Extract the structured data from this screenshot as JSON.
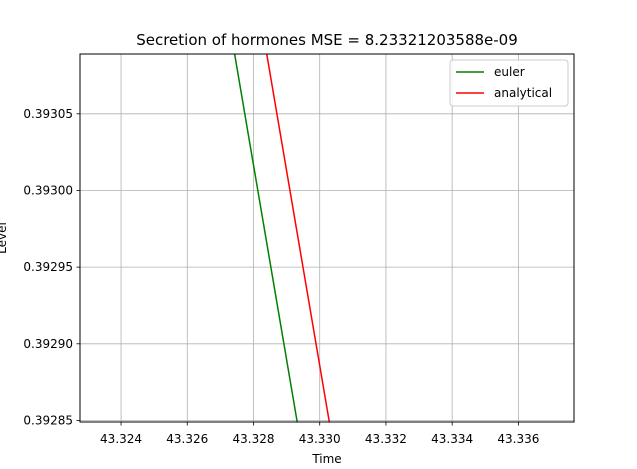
{
  "chart_data": {
    "type": "line",
    "title": "Secretion of hormones MSE = 8.23321203588e-09",
    "xlabel": "Time",
    "ylabel": "Level",
    "xlim": [
      43.32276,
      43.33768
    ],
    "ylim": [
      0.392849,
      0.393089
    ],
    "xticks": [
      43.324,
      43.326,
      43.328,
      43.33,
      43.332,
      43.334,
      43.336
    ],
    "xtick_labels": [
      "43.324",
      "43.326",
      "43.328",
      "43.330",
      "43.332",
      "43.334",
      "43.336"
    ],
    "yticks": [
      0.39285,
      0.3929,
      0.39295,
      0.393,
      0.39305
    ],
    "ytick_labels": [
      "0.39285",
      "0.39290",
      "0.39295",
      "0.39300",
      "0.39305"
    ],
    "grid": true,
    "legend_position": "top-right",
    "series": [
      {
        "name": "euler",
        "color": "#008000",
        "x": [
          43.32743,
          43.32932
        ],
        "y": [
          0.393089,
          0.392849
        ]
      },
      {
        "name": "analytical",
        "color": "#ff0000",
        "x": [
          43.3284,
          43.33029
        ],
        "y": [
          0.393089,
          0.392849
        ]
      }
    ]
  }
}
